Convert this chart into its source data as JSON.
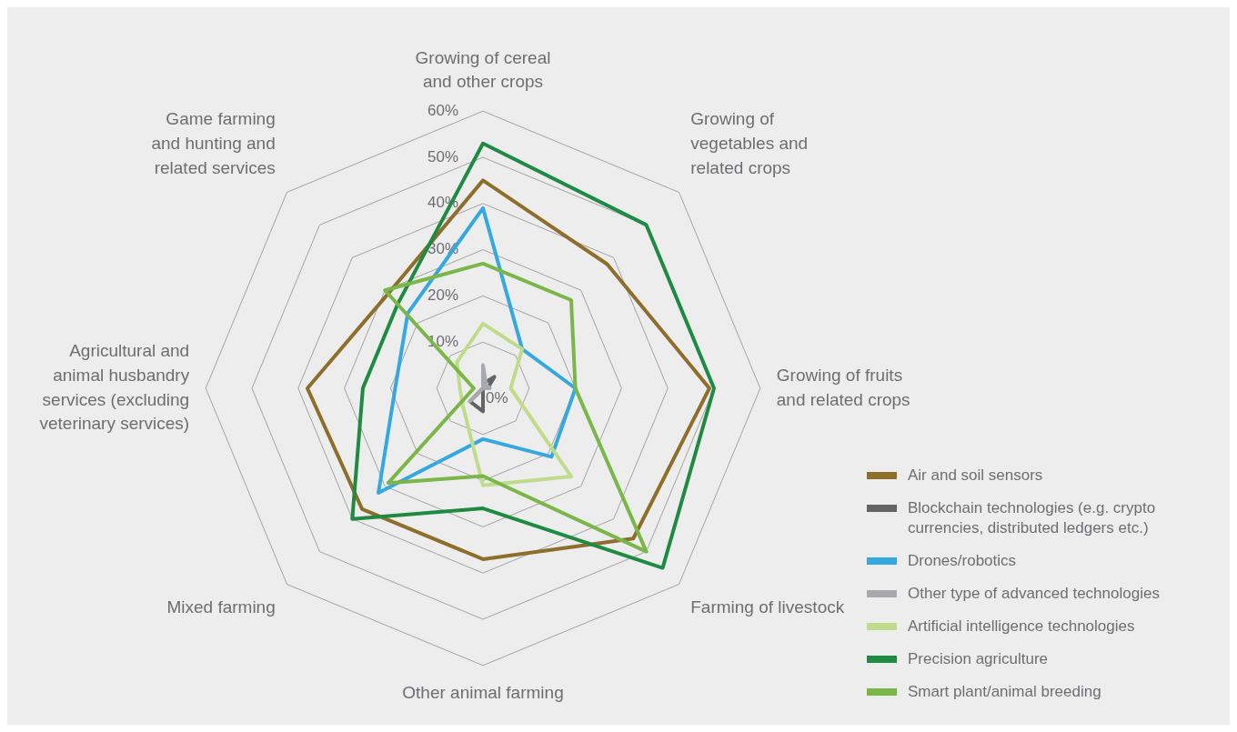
{
  "chart_data": {
    "type": "radar",
    "categories": [
      "Growing of cereal and other crops",
      "Growing of vegetables and related crops",
      "Growing of fruits and related crops",
      "Farming of livestock",
      "Other animal farming",
      "Mixed farming",
      "Agricultural and animal husbandry services (excluding veterinary services)",
      "Game farming and hunting and related services"
    ],
    "series": [
      {
        "name": "Air and soil sensors",
        "color": "#8d6e2a",
        "values": [
          45,
          38,
          49,
          46,
          37,
          37,
          38,
          29
        ]
      },
      {
        "name": "Blockchain technologies (e.g. crypto currencies, distributed ledgers etc.)",
        "color": "#636466",
        "values": [
          1,
          3.5,
          1,
          0,
          5,
          4,
          0,
          0
        ]
      },
      {
        "name": "Drones/robotics",
        "color": "#35a8e0",
        "values": [
          39,
          12,
          20,
          21,
          11,
          32,
          19,
          23
        ]
      },
      {
        "name": "Other type of advanced technologies",
        "color": "#a7a9ac",
        "values": [
          5,
          1,
          1.5,
          0,
          0,
          4,
          0,
          0
        ]
      },
      {
        "name": "Artificial intelligence technologies",
        "color": "#bfdc8b",
        "values": [
          14,
          12,
          6,
          27,
          21,
          6,
          5,
          8
        ]
      },
      {
        "name": "Precision agriculture",
        "color": "#1e8a42",
        "values": [
          53,
          50,
          50,
          55,
          26,
          40,
          26,
          26
        ]
      },
      {
        "name": "Smart plant/animal breeding",
        "color": "#7ab648",
        "values": [
          27,
          27,
          20,
          50,
          19,
          29,
          2,
          30
        ]
      }
    ],
    "ylim": [
      0,
      60
    ],
    "yticks": [
      {
        "value": 0,
        "label": "0%"
      },
      {
        "value": 10,
        "label": "10%"
      },
      {
        "value": 20,
        "label": "20%"
      },
      {
        "value": 30,
        "label": "30%"
      },
      {
        "value": 40,
        "label": "40%"
      },
      {
        "value": 50,
        "label": "50%"
      },
      {
        "value": 60,
        "label": "60%"
      }
    ],
    "grid": true,
    "legend": "bottom right",
    "marker": "none"
  }
}
